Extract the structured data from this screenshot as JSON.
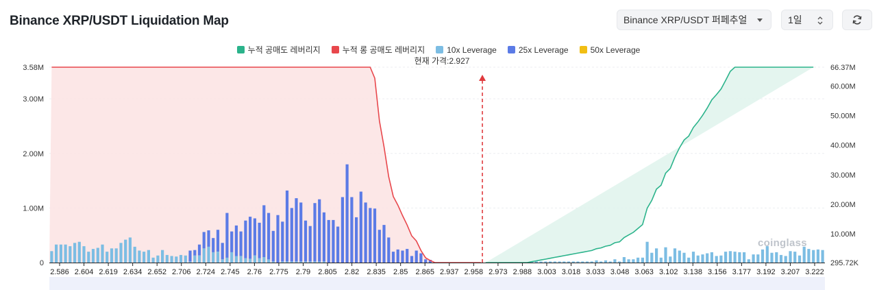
{
  "header": {
    "title": "Binance XRP/USDT Liquidation Map",
    "pair_select": "Binance XRP/USDT 퍼페추얼",
    "period_select": "1일",
    "refresh_icon": "refresh-icon"
  },
  "watermark": "coinglass",
  "chart_data": {
    "type": "bar",
    "title": "",
    "legend": [
      {
        "name": "누적 공매도 레버리지",
        "color": "#2bb38b"
      },
      {
        "name": "누적 롱 공매도 레버리지",
        "color": "#e8474c"
      },
      {
        "name": "10x Leverage",
        "color": "#7cbde3"
      },
      {
        "name": "25x Leverage",
        "color": "#5b7be6"
      },
      {
        "name": "50x Leverage",
        "color": "#f1be14"
      }
    ],
    "legend_position": "top-center",
    "current_price_label": "현재 가격:2.927",
    "current_price": 2.927,
    "x_tick_labels": [
      "2.586",
      "2.604",
      "2.619",
      "2.634",
      "2.652",
      "2.706",
      "2.724",
      "2.745",
      "2.76",
      "2.775",
      "2.79",
      "2.805",
      "2.82",
      "2.835",
      "2.85",
      "2.865",
      "2.937",
      "2.958",
      "2.973",
      "2.988",
      "3.003",
      "3.018",
      "3.033",
      "3.048",
      "3.063",
      "3.102",
      "3.138",
      "3.156",
      "3.177",
      "3.192",
      "3.207",
      "3.222"
    ],
    "y_left": {
      "ticks": [
        "0",
        "1.00M",
        "2.00M",
        "3.00M",
        "3.58M"
      ],
      "values": [
        0,
        1000000,
        2000000,
        3000000,
        3580000
      ],
      "range": [
        0,
        3580000
      ]
    },
    "y_right": {
      "ticks": [
        "295.72K",
        "10.00M",
        "20.00M",
        "30.00M",
        "40.00M",
        "50.00M",
        "60.00M",
        "66.37M"
      ],
      "values": [
        295720,
        10000000,
        20000000,
        30000000,
        40000000,
        50000000,
        60000000,
        66370000
      ],
      "range": [
        295720,
        66370000
      ]
    },
    "grid": true,
    "bar_count": 168,
    "bars_10x": [
      210,
      330,
      330,
      330,
      300,
      360,
      380,
      300,
      200,
      250,
      270,
      330,
      200,
      260,
      260,
      360,
      420,
      460,
      290,
      220,
      200,
      230,
      90,
      130,
      230,
      140,
      120,
      110,
      140,
      130,
      20,
      130,
      130,
      260,
      290,
      190,
      200,
      60,
      90,
      190,
      120,
      120,
      80,
      70,
      130,
      80,
      100,
      60,
      20,
      0,
      20,
      20,
      20,
      20,
      20,
      20,
      20,
      20,
      20,
      20,
      0,
      0,
      0,
      0,
      0,
      0,
      0,
      0,
      0,
      0,
      0,
      0,
      0,
      0,
      0,
      0,
      0,
      0,
      0,
      0,
      0,
      0,
      0,
      0,
      0,
      0,
      0,
      0,
      0,
      0,
      0,
      0,
      0,
      0,
      0,
      0,
      0,
      0,
      0,
      0,
      0,
      0,
      0,
      0,
      20,
      20,
      20,
      20,
      20,
      20,
      20,
      20,
      20,
      20,
      20,
      20,
      20,
      20,
      40,
      20,
      40,
      20,
      60,
      20,
      100,
      60,
      60,
      90,
      90,
      380,
      180,
      260,
      90,
      280,
      110,
      260,
      220,
      180,
      90,
      200,
      130,
      150,
      170,
      190,
      120,
      130,
      200,
      210,
      200,
      190,
      190,
      60,
      150,
      150,
      240,
      300,
      180,
      190,
      140,
      120,
      210,
      200,
      130,
      290,
      250,
      230,
      240,
      230,
      420,
      330,
      110,
      60
    ],
    "bars_25x": [
      0,
      0,
      0,
      0,
      0,
      0,
      0,
      0,
      0,
      0,
      0,
      0,
      0,
      0,
      0,
      0,
      0,
      0,
      0,
      0,
      0,
      0,
      0,
      0,
      0,
      0,
      0,
      0,
      0,
      0,
      200,
      100,
      200,
      300,
      300,
      260,
      400,
      300,
      820,
      380,
      560,
      450,
      690,
      770,
      680,
      650,
      950,
      850,
      560,
      870,
      730,
      1300,
      980,
      1160,
      1080,
      750,
      650,
      1070,
      1140,
      900,
      780,
      780,
      660,
      1200,
      1800,
      1200,
      830,
      1300,
      1100,
      1000,
      990,
      600,
      690,
      460,
      200,
      240,
      220,
      250,
      120,
      220,
      170,
      60,
      50,
      0,
      0,
      0,
      0,
      0,
      0,
      0,
      0,
      0,
      0,
      0,
      0,
      0,
      0,
      0,
      0,
      0,
      0,
      0,
      0,
      0,
      0,
      0,
      0,
      0,
      0,
      0,
      0,
      0,
      0,
      0,
      0,
      0,
      0,
      0,
      0,
      0,
      0,
      0,
      0,
      0,
      0,
      0,
      0,
      0,
      0,
      0,
      0,
      0,
      0,
      0,
      0,
      0,
      0,
      0,
      0,
      0,
      0,
      0,
      0,
      0,
      0,
      0,
      0,
      0,
      0,
      0,
      0,
      0,
      0,
      0,
      0,
      0,
      0,
      0,
      0,
      0,
      0,
      0,
      0,
      0,
      0,
      0
    ],
    "bars_50x": [
      0,
      0,
      0,
      0,
      0,
      0,
      0,
      0,
      0,
      0,
      0,
      0,
      0,
      0,
      0,
      0,
      0,
      0,
      0,
      0,
      0,
      0,
      0,
      0,
      0,
      0,
      0,
      0,
      0,
      0,
      0,
      0,
      0,
      0,
      0,
      0,
      0,
      0,
      0,
      0,
      0,
      0,
      0,
      0,
      0,
      0,
      0,
      0,
      0,
      0,
      0,
      0,
      0,
      0,
      0,
      0,
      0,
      0,
      0,
      0,
      0,
      0,
      0,
      0,
      0,
      0,
      0,
      0,
      0,
      0,
      0,
      0,
      0,
      0,
      0,
      0,
      0,
      0,
      0,
      0,
      0,
      0,
      0,
      0,
      0,
      0,
      0,
      0,
      0,
      0,
      0,
      0,
      0,
      0,
      0,
      0,
      0,
      0,
      0,
      0,
      0,
      0,
      0,
      0,
      0,
      0,
      0,
      0,
      0,
      0,
      0,
      0,
      0,
      0,
      0,
      0,
      0,
      0,
      0,
      0,
      0,
      0,
      0,
      0,
      0,
      0,
      0,
      0,
      0,
      0,
      0,
      0,
      0,
      0,
      0,
      0,
      0,
      0,
      0,
      0,
      0,
      0,
      0,
      0,
      0,
      0,
      0,
      0,
      0,
      0,
      0,
      0,
      0,
      0,
      0,
      0,
      0,
      0,
      0,
      0,
      0,
      0,
      0,
      0,
      0,
      0,
      0,
      0
    ]
  }
}
